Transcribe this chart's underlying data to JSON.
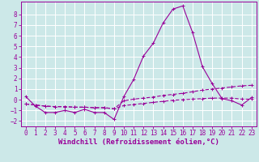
{
  "xlabel": "Windchill (Refroidissement éolien,°C)",
  "bg_color": "#cce8e8",
  "line_color": "#990099",
  "grid_color": "#ffffff",
  "xlim": [
    -0.5,
    23.5
  ],
  "ylim": [
    -2.5,
    9.2
  ],
  "x_ticks": [
    0,
    1,
    2,
    3,
    4,
    5,
    6,
    7,
    8,
    9,
    10,
    11,
    12,
    13,
    14,
    15,
    16,
    17,
    18,
    19,
    20,
    21,
    22,
    23
  ],
  "y_ticks": [
    -2,
    -1,
    0,
    1,
    2,
    3,
    4,
    5,
    6,
    7,
    8
  ],
  "series1_x": [
    0,
    1,
    2,
    3,
    4,
    5,
    6,
    7,
    8,
    9,
    10,
    11,
    12,
    13,
    14,
    15,
    16,
    17,
    18,
    19,
    20,
    21,
    22,
    23
  ],
  "series1_y": [
    0.3,
    -0.6,
    -1.2,
    -1.2,
    -1.0,
    -1.2,
    -0.9,
    -1.2,
    -1.2,
    -1.85,
    0.3,
    1.9,
    4.1,
    5.3,
    7.2,
    8.5,
    8.8,
    6.3,
    3.1,
    1.5,
    0.1,
    -0.1,
    -0.5,
    0.2
  ],
  "series2_x": [
    0,
    1,
    2,
    3,
    4,
    5,
    6,
    7,
    8,
    9,
    10,
    11,
    12,
    13,
    14,
    15,
    16,
    17,
    18,
    19,
    20,
    21,
    22,
    23
  ],
  "series2_y": [
    -0.4,
    -0.5,
    -0.6,
    -0.65,
    -0.65,
    -0.7,
    -0.7,
    -0.75,
    -0.75,
    -0.85,
    -0.1,
    0.05,
    0.15,
    0.25,
    0.4,
    0.5,
    0.6,
    0.75,
    0.9,
    1.0,
    1.1,
    1.2,
    1.3,
    1.35
  ],
  "series3_x": [
    0,
    1,
    2,
    3,
    4,
    5,
    6,
    7,
    8,
    9,
    10,
    11,
    12,
    13,
    14,
    15,
    16,
    17,
    18,
    19,
    20,
    21,
    22,
    23
  ],
  "series3_y": [
    -0.4,
    -0.5,
    -0.6,
    -0.65,
    -0.65,
    -0.7,
    -0.7,
    -0.75,
    -0.75,
    -0.85,
    -0.55,
    -0.45,
    -0.35,
    -0.25,
    -0.15,
    -0.05,
    0.0,
    0.05,
    0.1,
    0.15,
    0.15,
    0.15,
    0.05,
    0.05
  ],
  "marker": "+",
  "markersize": 3,
  "linewidth": 0.8,
  "tick_labelsize": 5.5,
  "xlabel_fontsize": 6.5,
  "xlabel_fontweight": "bold"
}
